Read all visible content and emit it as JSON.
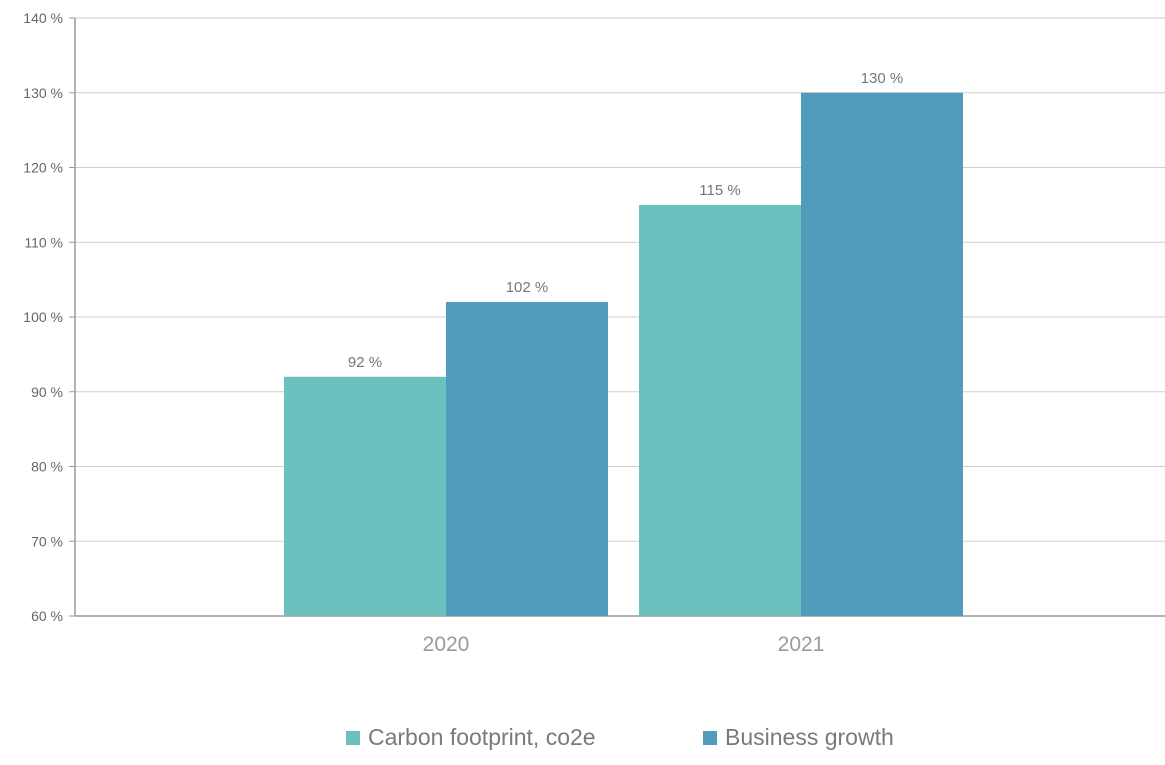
{
  "chart_data": {
    "type": "bar",
    "categories": [
      "2020",
      "2021"
    ],
    "series": [
      {
        "name": "Carbon footprint, co2e",
        "color": "#6cc1bf",
        "values": [
          92,
          115
        ]
      },
      {
        "name": "Business growth",
        "color": "#519cbc",
        "values": [
          102,
          130
        ]
      }
    ],
    "data_labels": [
      [
        "92 %",
        "115 %"
      ],
      [
        "102 %",
        "130 %"
      ]
    ],
    "y_ticks": [
      60,
      70,
      80,
      90,
      100,
      110,
      120,
      130,
      140
    ],
    "y_tick_labels": [
      "60 %",
      "70 %",
      "80 %",
      "90 %",
      "100 %",
      "110 %",
      "120 %",
      "130 %",
      "140 %"
    ],
    "ylim": [
      60,
      140
    ],
    "grid": true,
    "legend_position": "bottom-center",
    "title": "",
    "xlabel": "",
    "ylabel": ""
  },
  "colors": {
    "gridline": "#cfcfcf",
    "axis": "#9a9a9a"
  }
}
